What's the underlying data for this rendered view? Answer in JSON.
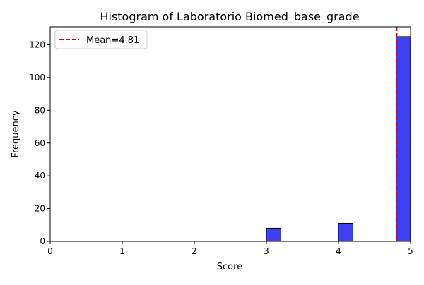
{
  "chart_data": {
    "type": "bar",
    "title": "Histogram of Laboratorio Biomed_base_grade",
    "xlabel": "Score",
    "ylabel": "Frequency",
    "xlim": [
      0,
      5
    ],
    "ylim": [
      0,
      131
    ],
    "xticks": [
      0,
      1,
      2,
      3,
      4,
      5
    ],
    "yticks": [
      0,
      20,
      40,
      60,
      80,
      100,
      120
    ],
    "bins": [
      {
        "x0": 3.0,
        "x1": 3.2,
        "count": 8
      },
      {
        "x0": 3.2,
        "x1": 3.4,
        "count": 0
      },
      {
        "x0": 3.4,
        "x1": 3.6,
        "count": 0
      },
      {
        "x0": 3.6,
        "x1": 3.8,
        "count": 0
      },
      {
        "x0": 3.8,
        "x1": 4.0,
        "count": 0
      },
      {
        "x0": 4.0,
        "x1": 4.2,
        "count": 11
      },
      {
        "x0": 4.2,
        "x1": 4.4,
        "count": 0
      },
      {
        "x0": 4.4,
        "x1": 4.6,
        "count": 0
      },
      {
        "x0": 4.6,
        "x1": 4.8,
        "count": 0
      },
      {
        "x0": 4.8,
        "x1": 5.0,
        "count": 125
      }
    ],
    "mean": 4.81,
    "legend": {
      "label": "Mean=4.81",
      "position": "upper-left"
    },
    "grid": false,
    "colors": {
      "bar_fill": "#3f3ff5",
      "bar_edge": "#000000",
      "mean_line": "#dd0000"
    }
  }
}
